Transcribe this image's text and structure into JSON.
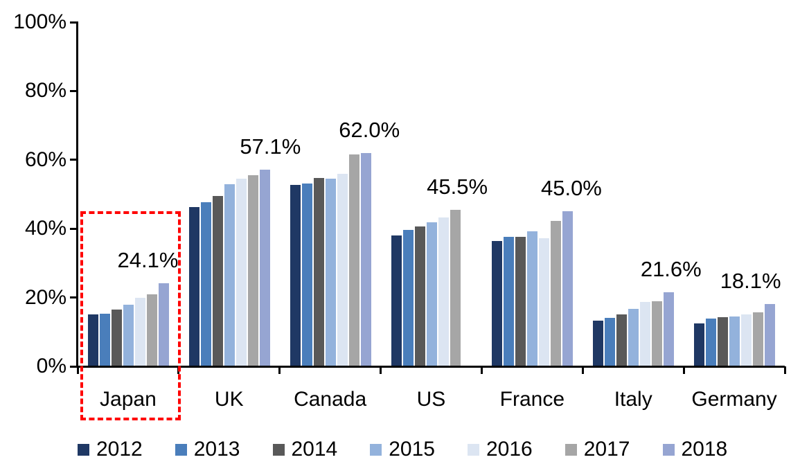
{
  "chart_data": {
    "type": "bar",
    "title": "",
    "xlabel": "",
    "ylabel": "",
    "grid": false,
    "legend_position": "bottom",
    "y_axis": {
      "min": 0,
      "max": 100,
      "tick_step": 20,
      "tick_labels": [
        "0%",
        "20%",
        "40%",
        "60%",
        "80%",
        "100%"
      ]
    },
    "categories": [
      "Japan",
      "UK",
      "Canada",
      "US",
      "France",
      "Italy",
      "Germany"
    ],
    "series": [
      {
        "name": "2012",
        "color": "#1F3864",
        "values": [
          15.0,
          46.2,
          52.8,
          38.1,
          36.4,
          13.3,
          12.4
        ]
      },
      {
        "name": "2013",
        "color": "#4A7EBB",
        "values": [
          15.2,
          47.6,
          53.2,
          39.7,
          37.6,
          14.1,
          13.9
        ]
      },
      {
        "name": "2014",
        "color": "#595959",
        "values": [
          16.6,
          49.6,
          54.8,
          40.7,
          37.7,
          15.1,
          14.2
        ]
      },
      {
        "name": "2015",
        "color": "#93B2DC",
        "values": [
          18.0,
          52.9,
          54.6,
          41.8,
          39.2,
          16.7,
          14.5
        ]
      },
      {
        "name": "2016",
        "color": "#DCE5F2",
        "values": [
          20.0,
          54.6,
          56.0,
          43.2,
          37.3,
          18.8,
          15.1
        ]
      },
      {
        "name": "2017",
        "color": "#A6A6A6",
        "values": [
          21.0,
          55.6,
          61.6,
          45.5,
          42.2,
          19.0,
          15.7
        ]
      },
      {
        "name": "2018",
        "color": "#96A5D2",
        "values": [
          24.1,
          57.1,
          62.0,
          null,
          45.0,
          21.6,
          18.1
        ]
      }
    ],
    "data_labels": [
      "24.1%",
      "57.1%",
      "62.0%",
      "45.5%",
      "45.0%",
      "21.6%",
      "18.1%"
    ],
    "annotations": {
      "highlight_box": {
        "target": "Japan",
        "color": "#FF0000",
        "style": "dashed"
      }
    }
  }
}
